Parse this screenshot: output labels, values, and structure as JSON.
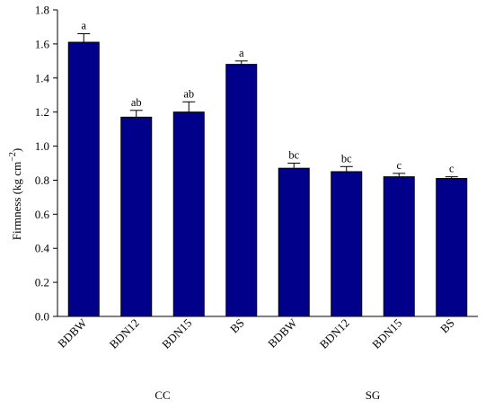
{
  "chart_data": {
    "type": "bar",
    "categories": [
      "BDBW",
      "BDN12",
      "BDN15",
      "BS",
      "BDBW",
      "BDN12",
      "BDN15",
      "BS"
    ],
    "groups": [
      {
        "label": "CC",
        "start": 0,
        "end": 3
      },
      {
        "label": "SG",
        "start": 4,
        "end": 7
      }
    ],
    "values": [
      1.61,
      1.17,
      1.2,
      1.48,
      0.87,
      0.85,
      0.82,
      0.81
    ],
    "errors": [
      0.05,
      0.04,
      0.06,
      0.02,
      0.03,
      0.03,
      0.02,
      0.01
    ],
    "letters": [
      "a",
      "ab",
      "ab",
      "a",
      "bc",
      "bc",
      "c",
      "c"
    ],
    "ylabel": "Firmness (kg cm",
    "ylabel_superscript": "−2",
    "ylabel_close": ")",
    "ylim": [
      0,
      1.8
    ],
    "yticks": [
      "0.0",
      "0.2",
      "0.4",
      "0.6",
      "0.8",
      "1.0",
      "1.2",
      "1.4",
      "1.6",
      "1.8"
    ],
    "bar_color": "#00008B",
    "grid": false
  }
}
